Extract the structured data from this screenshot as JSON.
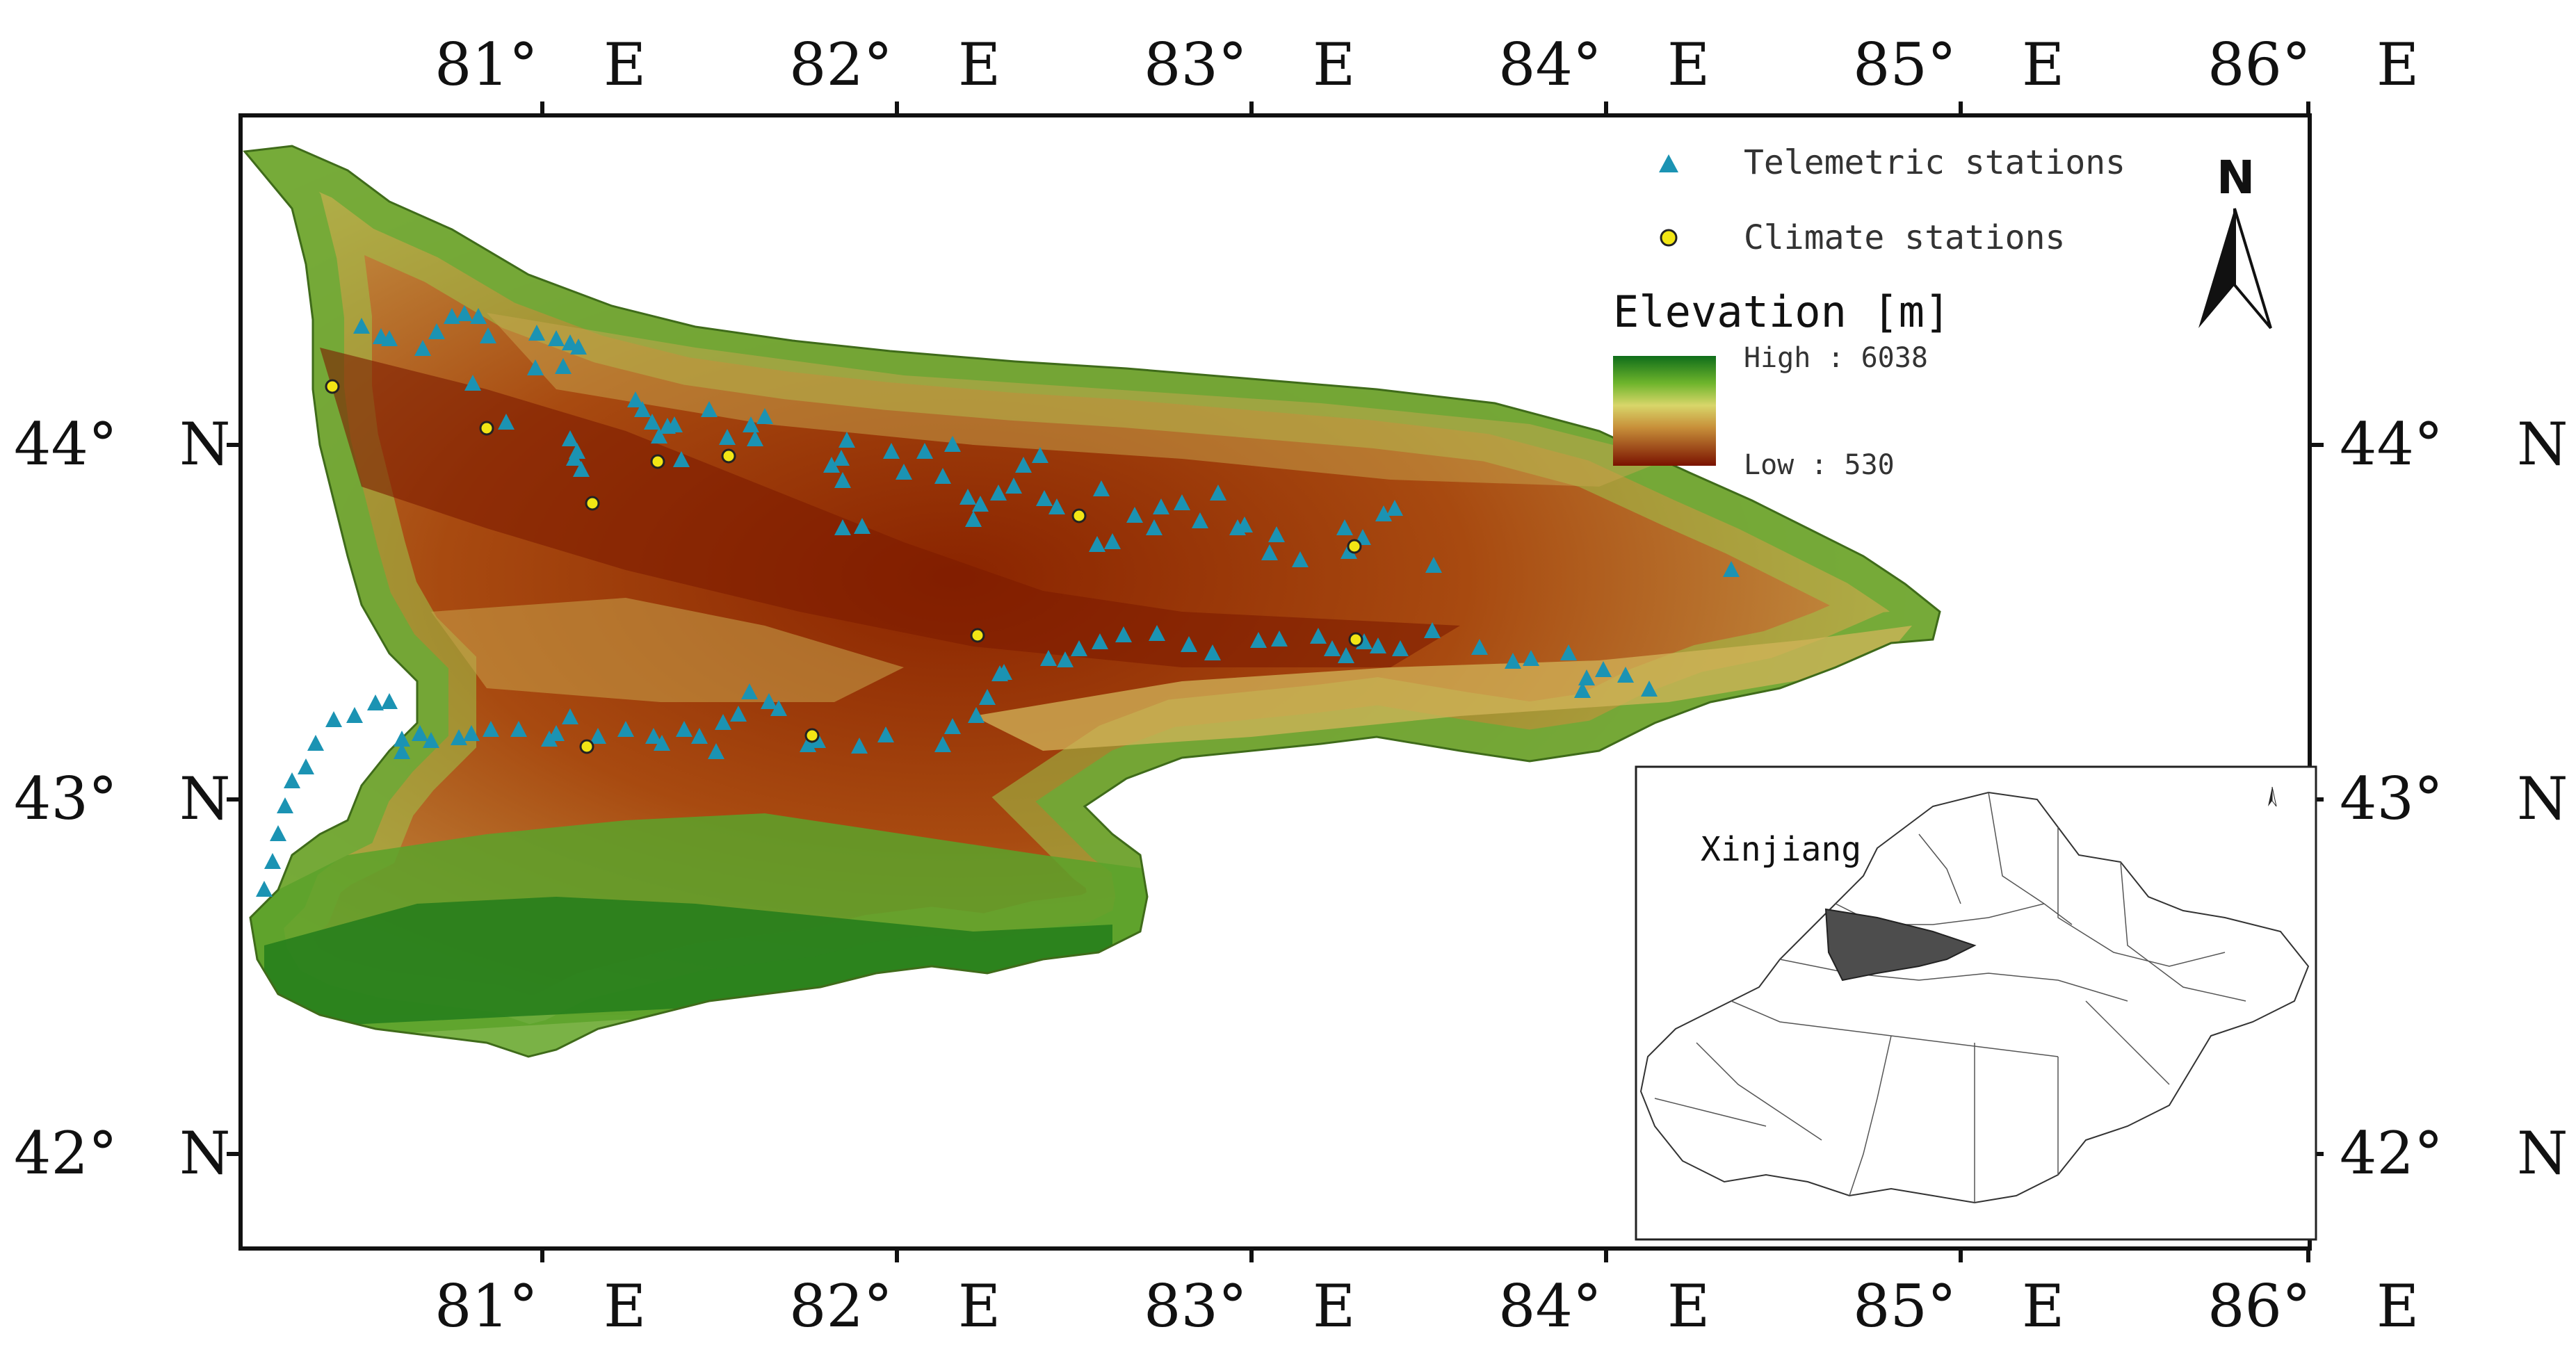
{
  "map": {
    "top_ticks": [
      {
        "deg": "81°",
        "hemi": "E"
      },
      {
        "deg": "82°",
        "hemi": "E"
      },
      {
        "deg": "83°",
        "hemi": "E"
      },
      {
        "deg": "84°",
        "hemi": "E"
      },
      {
        "deg": "85°",
        "hemi": "E"
      },
      {
        "deg": "86°",
        "hemi": "E"
      }
    ],
    "left_ticks": [
      {
        "deg": "44°",
        "hemi": "N"
      },
      {
        "deg": "43°",
        "hemi": "N"
      },
      {
        "deg": "42°",
        "hemi": "N"
      }
    ],
    "legend": {
      "telemetric": "Telemetric stations",
      "climate": "Climate stations",
      "elevation_title": "Elevation [m]",
      "high": "High : 6038",
      "low": "Low : 530"
    },
    "north_label": "N",
    "inset_label": "Xinjiang",
    "colors": {
      "telemetric": "#1b93b3",
      "climate": "#f2e614",
      "high_ramp": "#0f6d1a",
      "low_ramp": "#7a1200",
      "inset_highlight": "#4d4d4d"
    }
  }
}
